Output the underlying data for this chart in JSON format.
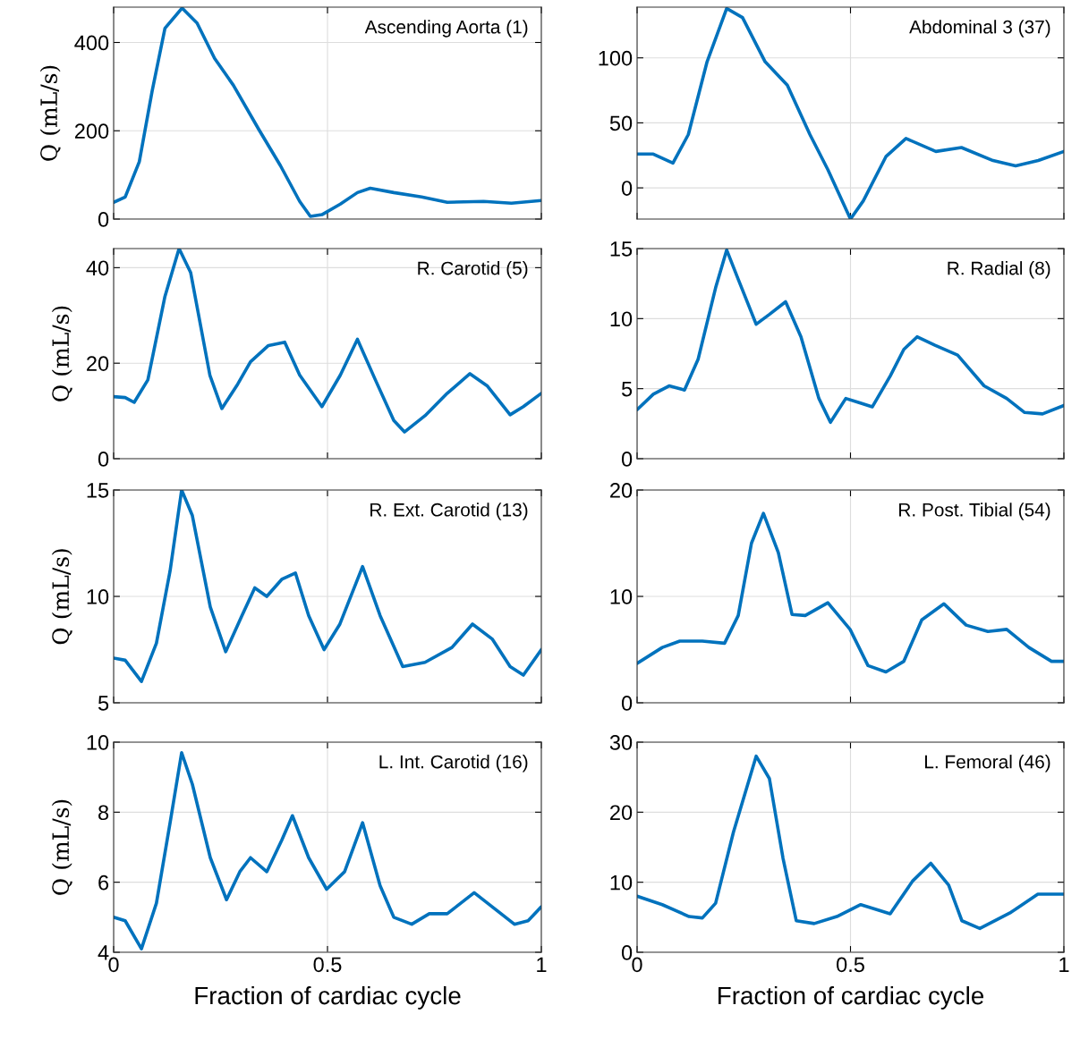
{
  "chart_data": [
    {
      "type": "line",
      "title": "Ascending Aorta (1)",
      "ylabel": "Q (mL/s)",
      "xlim": [
        0,
        1
      ],
      "ylim": [
        0,
        480
      ],
      "xticks": [
        0,
        0.5,
        1
      ],
      "yticks": [
        0,
        200,
        400
      ],
      "grid": true,
      "tick_labels": "y",
      "x": [
        0,
        0.027,
        0.06,
        0.09,
        0.12,
        0.16,
        0.195,
        0.236,
        0.28,
        0.34,
        0.39,
        0.435,
        0.46,
        0.487,
        0.53,
        0.57,
        0.6,
        0.655,
        0.72,
        0.78,
        0.865,
        0.93,
        1
      ],
      "series": [
        {
          "color": "#0072bd",
          "values": [
            38,
            50,
            130,
            290,
            432,
            478,
            444,
            364,
            303,
            202,
            121,
            40,
            6,
            10,
            34,
            60,
            70,
            60,
            50,
            38,
            40,
            36,
            42
          ]
        }
      ]
    },
    {
      "type": "line",
      "title": "Abdominal 3 (37)",
      "xlim": [
        0,
        1
      ],
      "ylim": [
        -24,
        139
      ],
      "xticks": [
        0,
        0.5,
        1
      ],
      "yticks": [
        0,
        50,
        100
      ],
      "grid": true,
      "tick_labels": "y",
      "x": [
        0,
        0.038,
        0.084,
        0.12,
        0.164,
        0.21,
        0.247,
        0.3,
        0.352,
        0.405,
        0.447,
        0.5,
        0.53,
        0.583,
        0.63,
        0.7,
        0.76,
        0.834,
        0.887,
        0.94,
        1
      ],
      "series": [
        {
          "color": "#0072bd",
          "values": [
            26,
            26,
            19,
            41,
            97,
            138,
            131,
            97,
            79,
            41,
            14,
            -24,
            -10,
            24,
            38,
            28,
            31,
            21,
            17,
            21,
            28
          ]
        }
      ]
    },
    {
      "type": "line",
      "title": "R. Carotid (5)",
      "ylabel": "Q (mL/s)",
      "xlim": [
        0,
        1
      ],
      "ylim": [
        0,
        44
      ],
      "xticks": [
        0,
        0.5,
        1
      ],
      "yticks": [
        0,
        20,
        40
      ],
      "grid": true,
      "tick_labels": "y",
      "x": [
        0,
        0.027,
        0.048,
        0.08,
        0.12,
        0.153,
        0.18,
        0.225,
        0.253,
        0.29,
        0.32,
        0.362,
        0.4,
        0.435,
        0.487,
        0.53,
        0.57,
        0.612,
        0.655,
        0.68,
        0.728,
        0.78,
        0.833,
        0.874,
        0.927,
        0.958,
        1
      ],
      "series": [
        {
          "color": "#0072bd",
          "values": [
            13,
            12.8,
            11.8,
            16.5,
            34,
            44,
            39,
            17.5,
            10.5,
            15.6,
            20.3,
            23.7,
            24.4,
            17.5,
            10.9,
            17.5,
            25,
            16.5,
            8,
            5.6,
            9,
            13.7,
            17.8,
            15.2,
            9.2,
            10.9,
            13.7
          ]
        }
      ]
    },
    {
      "type": "line",
      "title": "R. Radial (8)",
      "xlim": [
        0,
        1
      ],
      "ylim": [
        0,
        15
      ],
      "xticks": [
        0,
        0.5,
        1
      ],
      "yticks": [
        0,
        5,
        10,
        15
      ],
      "grid": true,
      "tick_labels": "y",
      "x": [
        0,
        0.038,
        0.075,
        0.111,
        0.143,
        0.184,
        0.21,
        0.237,
        0.279,
        0.31,
        0.348,
        0.384,
        0.426,
        0.453,
        0.489,
        0.52,
        0.551,
        0.593,
        0.625,
        0.656,
        0.698,
        0.751,
        0.813,
        0.866,
        0.908,
        0.95,
        1
      ],
      "series": [
        {
          "color": "#0072bd",
          "values": [
            3.5,
            4.6,
            5.2,
            4.9,
            7.1,
            12.2,
            14.9,
            12.8,
            9.6,
            10.3,
            11.2,
            8.7,
            4.3,
            2.6,
            4.3,
            4.0,
            3.7,
            5.9,
            7.8,
            8.7,
            8.1,
            7.4,
            5.2,
            4.3,
            3.3,
            3.2,
            3.8
          ]
        }
      ]
    },
    {
      "type": "line",
      "title": "R. Ext. Carotid (13)",
      "ylabel": "Q (mL/s)",
      "xlim": [
        0,
        1
      ],
      "ylim": [
        5,
        15
      ],
      "xticks": [
        0,
        0.5,
        1
      ],
      "yticks": [
        5,
        10,
        15
      ],
      "grid": true,
      "tick_labels": "y",
      "x": [
        0,
        0.027,
        0.065,
        0.1,
        0.132,
        0.159,
        0.184,
        0.226,
        0.262,
        0.3,
        0.33,
        0.358,
        0.393,
        0.425,
        0.456,
        0.492,
        0.529,
        0.582,
        0.623,
        0.676,
        0.728,
        0.791,
        0.839,
        0.885,
        0.927,
        0.958,
        1
      ],
      "series": [
        {
          "color": "#0072bd",
          "values": [
            7.1,
            7.0,
            6.0,
            7.8,
            11.2,
            15.0,
            13.8,
            9.5,
            7.4,
            9.1,
            10.4,
            10.0,
            10.8,
            11.1,
            9.1,
            7.5,
            8.7,
            11.4,
            9.1,
            6.7,
            6.9,
            7.6,
            8.7,
            8.0,
            6.7,
            6.3,
            7.5
          ]
        }
      ]
    },
    {
      "type": "line",
      "title": "R. Post. Tibial (54)",
      "xlim": [
        0,
        1
      ],
      "ylim": [
        0,
        20
      ],
      "xticks": [
        0,
        0.5,
        1
      ],
      "yticks": [
        0,
        10,
        20
      ],
      "grid": true,
      "tick_labels": "y",
      "x": [
        0,
        0.059,
        0.1,
        0.153,
        0.205,
        0.237,
        0.268,
        0.296,
        0.331,
        0.363,
        0.394,
        0.447,
        0.499,
        0.541,
        0.583,
        0.625,
        0.667,
        0.719,
        0.771,
        0.822,
        0.866,
        0.918,
        0.971,
        1
      ],
      "series": [
        {
          "color": "#0072bd",
          "values": [
            3.7,
            5.2,
            5.8,
            5.8,
            5.6,
            8.2,
            15,
            17.8,
            14.1,
            8.3,
            8.2,
            9.4,
            6.9,
            3.5,
            2.9,
            3.9,
            7.8,
            9.3,
            7.3,
            6.7,
            6.9,
            5.2,
            3.9,
            3.9
          ]
        }
      ]
    },
    {
      "type": "line",
      "title": "L. Int. Carotid (16)",
      "ylabel": "Q (mL/s)",
      "xlabel": "Fraction of cardiac cycle",
      "xlim": [
        0,
        1
      ],
      "ylim": [
        4,
        10
      ],
      "xticks": [
        0,
        0.5,
        1
      ],
      "yticks": [
        4,
        6,
        8,
        10
      ],
      "grid": true,
      "x": [
        0,
        0.027,
        0.065,
        0.1,
        0.132,
        0.159,
        0.184,
        0.226,
        0.264,
        0.295,
        0.32,
        0.358,
        0.393,
        0.418,
        0.456,
        0.498,
        0.54,
        0.582,
        0.623,
        0.655,
        0.697,
        0.738,
        0.78,
        0.843,
        0.885,
        0.937,
        0.969,
        1
      ],
      "series": [
        {
          "color": "#0072bd",
          "values": [
            5.0,
            4.9,
            4.1,
            5.4,
            7.7,
            9.7,
            8.8,
            6.7,
            5.5,
            6.3,
            6.7,
            6.3,
            7.2,
            7.9,
            6.7,
            5.8,
            6.3,
            7.7,
            5.9,
            5.0,
            4.8,
            5.1,
            5.1,
            5.7,
            5.3,
            4.8,
            4.9,
            5.3
          ]
        }
      ]
    },
    {
      "type": "line",
      "title": "L. Femoral (46)",
      "xlabel": "Fraction of cardiac cycle",
      "xlim": [
        0,
        1
      ],
      "ylim": [
        0,
        30
      ],
      "xticks": [
        0,
        0.5,
        1
      ],
      "yticks": [
        0,
        10,
        20,
        30
      ],
      "grid": true,
      "x": [
        0,
        0.059,
        0.122,
        0.153,
        0.184,
        0.226,
        0.279,
        0.31,
        0.342,
        0.373,
        0.415,
        0.468,
        0.524,
        0.593,
        0.646,
        0.688,
        0.73,
        0.761,
        0.803,
        0.876,
        0.939,
        1
      ],
      "series": [
        {
          "color": "#0072bd",
          "values": [
            8.0,
            6.8,
            5.1,
            4.9,
            7,
            17.2,
            28,
            24.8,
            13.4,
            4.5,
            4.1,
            5.1,
            6.8,
            5.5,
            10.2,
            12.7,
            9.6,
            4.5,
            3.4,
            5.7,
            8.3,
            8.3
          ]
        }
      ]
    }
  ]
}
